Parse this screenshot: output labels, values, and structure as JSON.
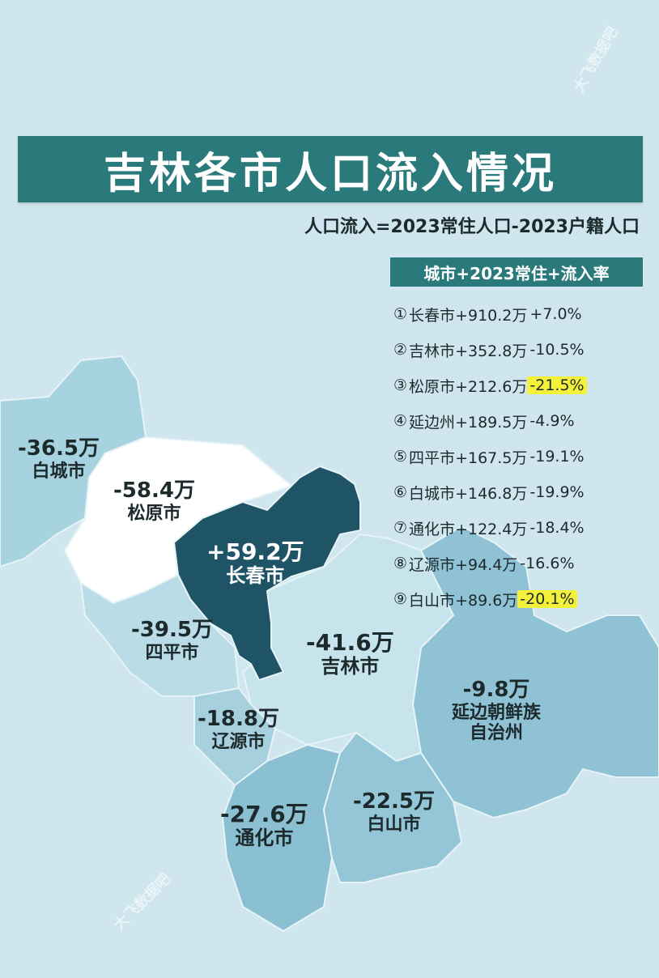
{
  "title": "吉林各市人口流入情况",
  "subtitle": "人口流入=2023常住人口-2023户籍人口",
  "table": {
    "header": "城市+2023常住+流入率",
    "rows": [
      {
        "num": "①",
        "city": "长春市",
        "pop": "+910.2万",
        "rate": "+7.0%",
        "highlight": false
      },
      {
        "num": "②",
        "city": "吉林市",
        "pop": "+352.8万",
        "rate": "-10.5%",
        "highlight": false
      },
      {
        "num": "③",
        "city": "松原市",
        "pop": "+212.6万",
        "rate": "-21.5%",
        "highlight": true
      },
      {
        "num": "④",
        "city": "延边州",
        "pop": "+189.5万",
        "rate": "-4.9%",
        "highlight": false
      },
      {
        "num": "⑤",
        "city": "四平市",
        "pop": "+167.5万",
        "rate": "-19.1%",
        "highlight": false
      },
      {
        "num": "⑥",
        "city": "白城市",
        "pop": "+146.8万",
        "rate": "-19.9%",
        "highlight": false
      },
      {
        "num": "⑦",
        "city": "通化市",
        "pop": "+122.4万",
        "rate": "-18.4%",
        "highlight": false
      },
      {
        "num": "⑧",
        "city": "辽源市",
        "pop": "+94.4万",
        "rate": "-16.6%",
        "highlight": false
      },
      {
        "num": "⑨",
        "city": "白山市",
        "pop": "+89.6万",
        "rate": "-20.1%",
        "highlight": true
      }
    ]
  },
  "regions": {
    "baicheng": {
      "value": "-36.5万",
      "name": "白城市"
    },
    "songyuan": {
      "value": "-58.4万",
      "name": "松原市"
    },
    "changchun": {
      "value": "+59.2万",
      "name": "长春市"
    },
    "siping": {
      "value": "-39.5万",
      "name": "四平市"
    },
    "jilin": {
      "value": "-41.6万",
      "name": "吉林市"
    },
    "yanbian": {
      "value": "-9.8万",
      "name1": "延边朝鲜族",
      "name2": "自治州"
    },
    "liaoyuan": {
      "value": "-18.8万",
      "name": "辽源市"
    },
    "tonghua": {
      "value": "-27.6万",
      "name": "通化市"
    },
    "baishan": {
      "value": "-22.5万",
      "name": "白山市"
    }
  },
  "watermarks": [
    "大飞数据吧",
    "大飞数据吧"
  ],
  "colors": {
    "background": "#cfe6ee",
    "title_bg": "#2a7a7b",
    "changchun": "#1f5366",
    "songyuan": "#ffffff",
    "highlight": "#f4f13a"
  }
}
